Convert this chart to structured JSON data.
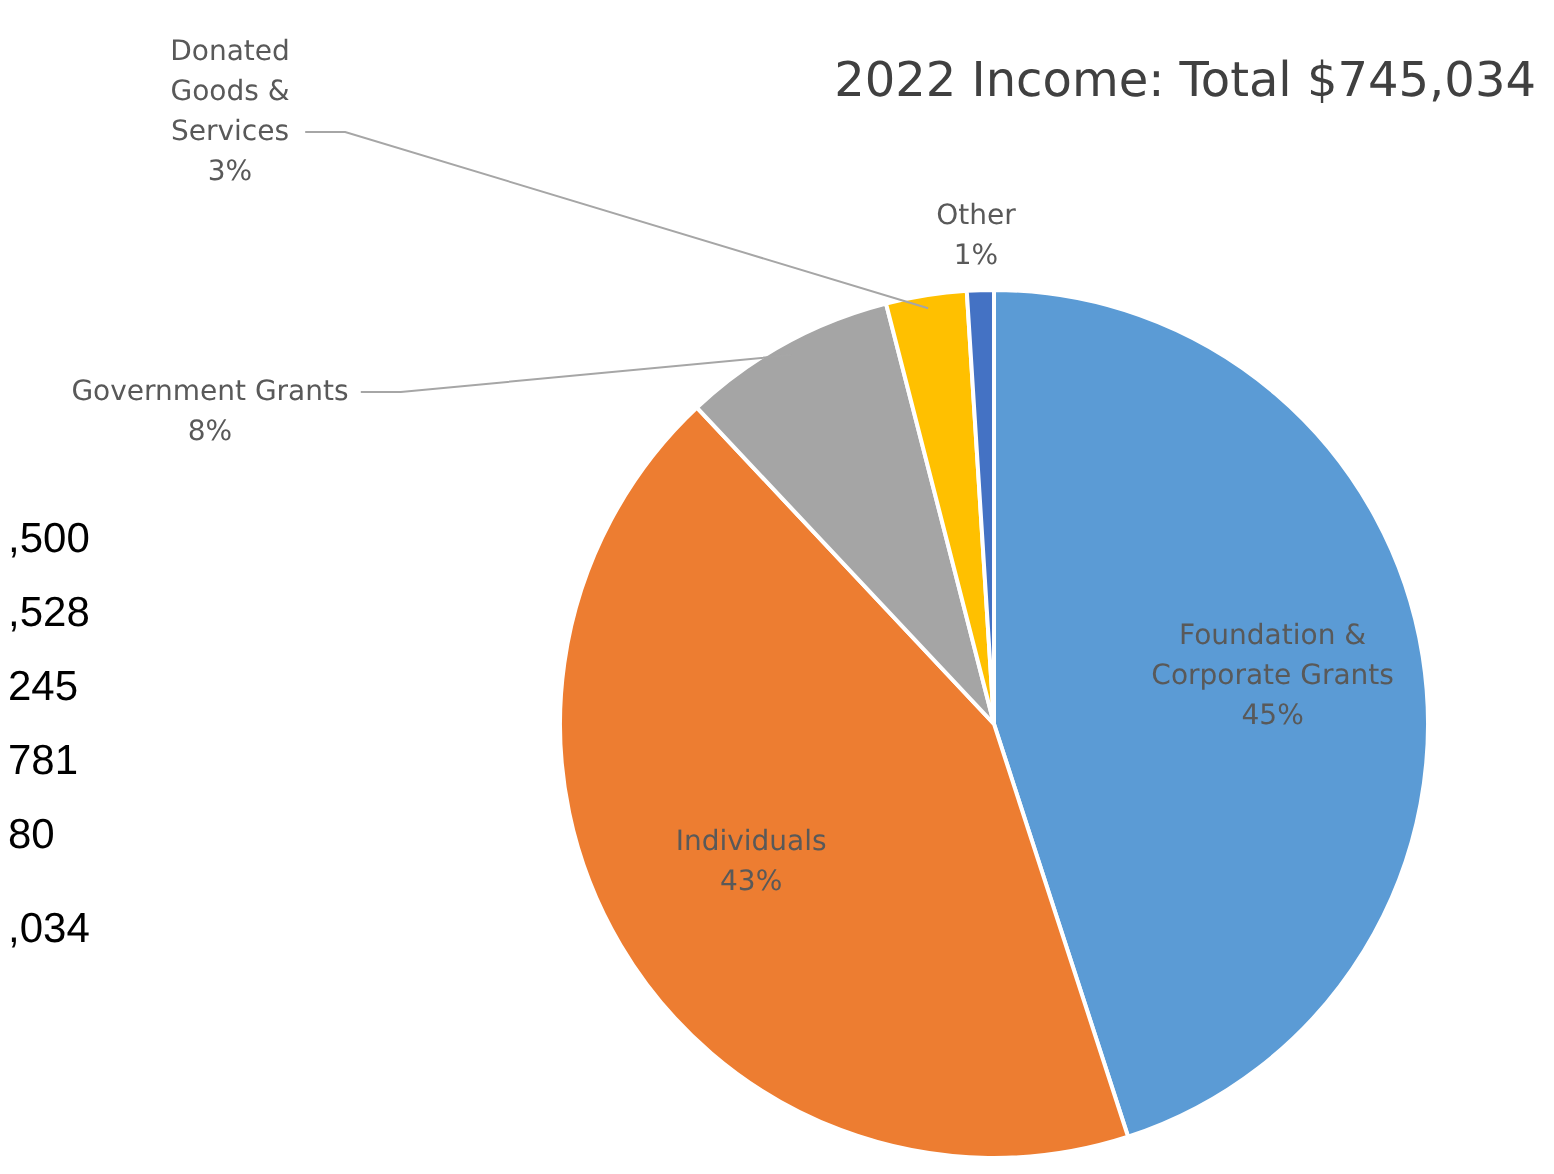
{
  "chart_data": {
    "type": "pie",
    "title": "2022 Income: Total $745,034",
    "categories": [
      "Foundation & Corporate Grants",
      "Individuals",
      "Government Grants",
      "Donated Goods & Services",
      "Other"
    ],
    "values": [
      45,
      43,
      8,
      3,
      1
    ],
    "value_labels": [
      "45%",
      "43%",
      "8%",
      "3%",
      "1%"
    ],
    "colors": [
      "#5b9bd5",
      "#ed7d31",
      "#a5a5a5",
      "#ffc000",
      "#4472c4"
    ],
    "annotations": [
      ",500",
      ",528",
      "245",
      "781",
      "80",
      ",034"
    ]
  }
}
